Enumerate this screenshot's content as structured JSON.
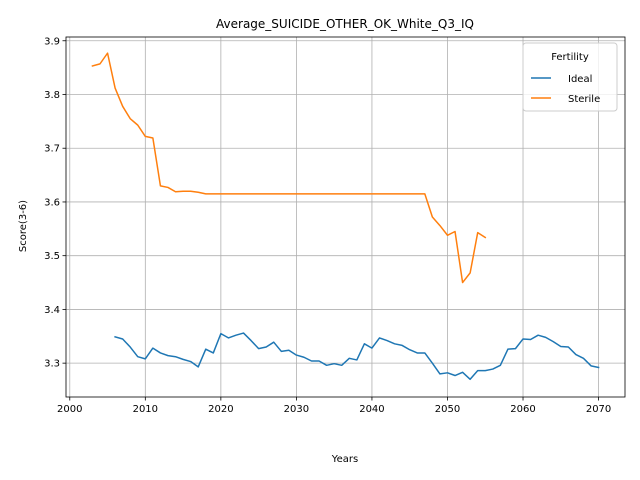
{
  "chart_data": {
    "type": "line",
    "title": "Average_SUICIDE_OTHER_OK_White_Q3_IQ",
    "xlabel": "Years",
    "ylabel": "Score(3-6)",
    "xlim": [
      1999.5,
      2073.5
    ],
    "ylim": [
      3.237,
      3.907
    ],
    "xticks": [
      2000,
      2010,
      2020,
      2030,
      2040,
      2050,
      2060,
      2070
    ],
    "yticks": [
      3.3,
      3.4,
      3.5,
      3.6,
      3.7,
      3.8,
      3.9
    ],
    "grid": true,
    "legend": {
      "title": "Fertility",
      "position": "top-right"
    },
    "series": [
      {
        "name": "Ideal",
        "color": "#1f77b4",
        "x": [
          2006,
          2007,
          2008,
          2009,
          2010,
          2011,
          2012,
          2013,
          2014,
          2015,
          2016,
          2017,
          2018,
          2019,
          2020,
          2021,
          2022,
          2023,
          2024,
          2025,
          2026,
          2027,
          2028,
          2029,
          2030,
          2031,
          2032,
          2033,
          2034,
          2035,
          2036,
          2037,
          2038,
          2039,
          2040,
          2041,
          2042,
          2043,
          2044,
          2045,
          2046,
          2047,
          2048,
          2049,
          2050,
          2051,
          2052,
          2053,
          2054,
          2055,
          2056,
          2057,
          2058,
          2059,
          2060,
          2061,
          2062,
          2063,
          2064,
          2065,
          2066,
          2067,
          2068,
          2069,
          2070
        ],
        "values": [
          3.349,
          3.345,
          3.33,
          3.312,
          3.308,
          3.328,
          3.319,
          3.314,
          3.312,
          3.307,
          3.303,
          3.293,
          3.326,
          3.319,
          3.355,
          3.347,
          3.352,
          3.356,
          3.342,
          3.327,
          3.33,
          3.339,
          3.322,
          3.324,
          3.315,
          3.311,
          3.304,
          3.304,
          3.296,
          3.299,
          3.296,
          3.309,
          3.306,
          3.336,
          3.328,
          3.347,
          3.342,
          3.336,
          3.333,
          3.325,
          3.319,
          3.319,
          3.3,
          3.28,
          3.282,
          3.277,
          3.283,
          3.27,
          3.286,
          3.286,
          3.289,
          3.296,
          3.326,
          3.327,
          3.345,
          3.344,
          3.352,
          3.348,
          3.34,
          3.331,
          3.33,
          3.316,
          3.309,
          3.295,
          3.292
        ]
      },
      {
        "name": "Sterile",
        "color": "#ff7f0e",
        "x": [
          2003,
          2004,
          2005,
          2006,
          2007,
          2008,
          2009,
          2010,
          2011,
          2012,
          2013,
          2014,
          2015,
          2016,
          2017,
          2018,
          2019,
          2020,
          2021,
          2022,
          2023,
          2024,
          2025,
          2026,
          2027,
          2028,
          2029,
          2030,
          2031,
          2032,
          2033,
          2034,
          2035,
          2036,
          2037,
          2038,
          2039,
          2040,
          2041,
          2042,
          2043,
          2044,
          2045,
          2046,
          2047,
          2048,
          2049,
          2050,
          2051,
          2052,
          2053,
          2054,
          2055
        ],
        "values": [
          3.853,
          3.857,
          3.877,
          3.812,
          3.778,
          3.755,
          3.743,
          3.722,
          3.719,
          3.63,
          3.627,
          3.619,
          3.62,
          3.62,
          3.618,
          3.615,
          3.615,
          3.615,
          3.615,
          3.615,
          3.615,
          3.615,
          3.615,
          3.615,
          3.615,
          3.615,
          3.615,
          3.615,
          3.615,
          3.615,
          3.615,
          3.615,
          3.615,
          3.615,
          3.615,
          3.615,
          3.615,
          3.615,
          3.615,
          3.615,
          3.615,
          3.615,
          3.615,
          3.615,
          3.615,
          3.572,
          3.556,
          3.538,
          3.545,
          3.45,
          3.468,
          3.543,
          3.534
        ]
      }
    ]
  }
}
